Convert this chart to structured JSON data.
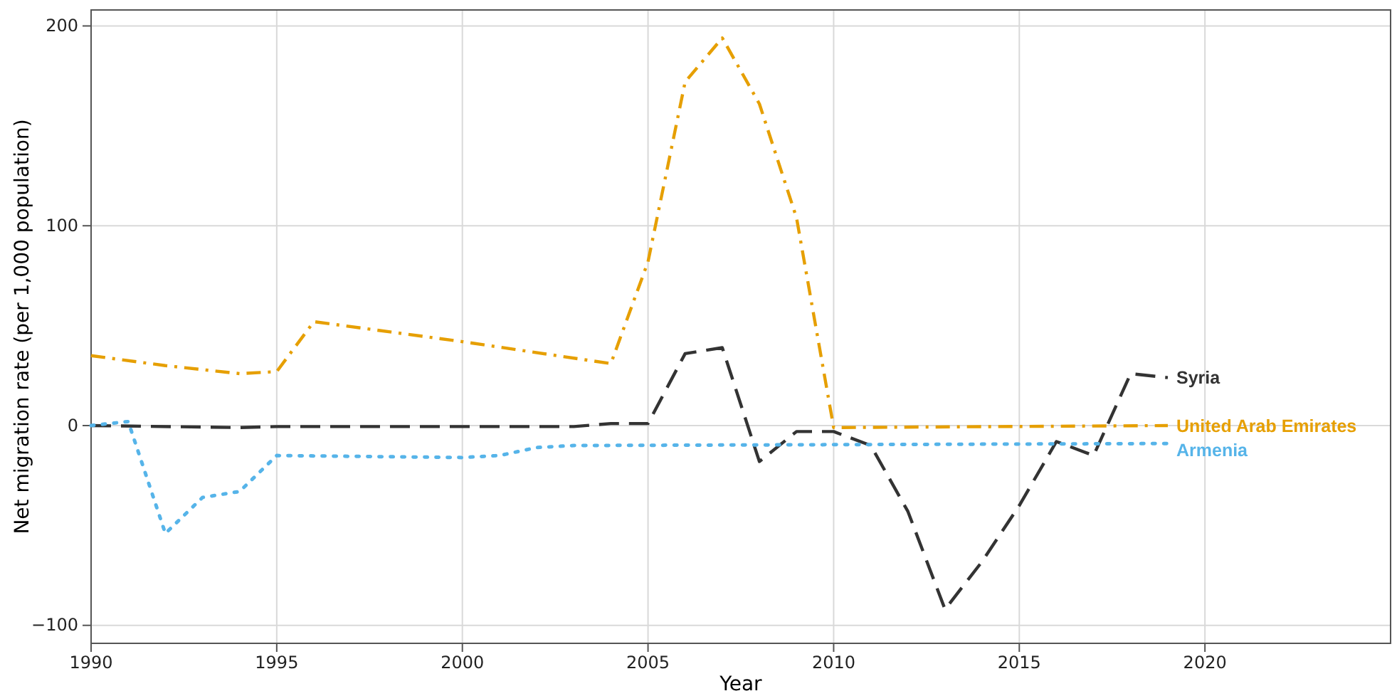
{
  "chart_data": {
    "type": "line",
    "xlabel": "Year",
    "ylabel": "Net migration rate (per 1,000 population)",
    "xlim": [
      1990,
      2025
    ],
    "ylim": [
      -109,
      208
    ],
    "xticks": [
      1990,
      1995,
      2000,
      2005,
      2010,
      2015,
      2020
    ],
    "yticks": [
      {
        "value": -100,
        "label": "−100"
      },
      0,
      100,
      200
    ],
    "grid": true,
    "legend": false,
    "marker": "none",
    "series": [
      {
        "name": "Syria",
        "color": "#333333",
        "line_style": "dashed",
        "x": [
          1990,
          1994,
          1995,
          2003,
          2004,
          2005,
          2006,
          2007,
          2008,
          2009,
          2010,
          2011,
          2012,
          2013,
          2014,
          2015,
          2016,
          2017,
          2018,
          2019
        ],
        "values": [
          0,
          -1,
          -0.5,
          -0.5,
          1,
          1,
          36,
          39,
          -18,
          -3,
          -3,
          -10,
          -43,
          -92,
          -68,
          -40,
          -8,
          -15,
          26,
          24
        ]
      },
      {
        "name": "United Arab Emirates",
        "color": "#e69f00",
        "line_style": "dashdot",
        "x": [
          1990,
          1992,
          1994,
          1995,
          1996,
          2000,
          2004,
          2005,
          2006,
          2007,
          2008,
          2009,
          2010,
          2019
        ],
        "values": [
          35,
          30,
          26,
          27,
          52,
          42,
          31,
          82,
          172,
          194,
          161,
          104,
          -1,
          0
        ]
      },
      {
        "name": "Armenia",
        "color": "#56b4e9",
        "line_style": "dotted",
        "x": [
          1990,
          1991,
          1992,
          1993,
          1994,
          1995,
          2000,
          2001,
          2002,
          2003,
          2019
        ],
        "values": [
          0,
          2,
          -54,
          -36,
          -33,
          -15,
          -16,
          -15,
          -11,
          -10,
          -9
        ]
      }
    ]
  }
}
